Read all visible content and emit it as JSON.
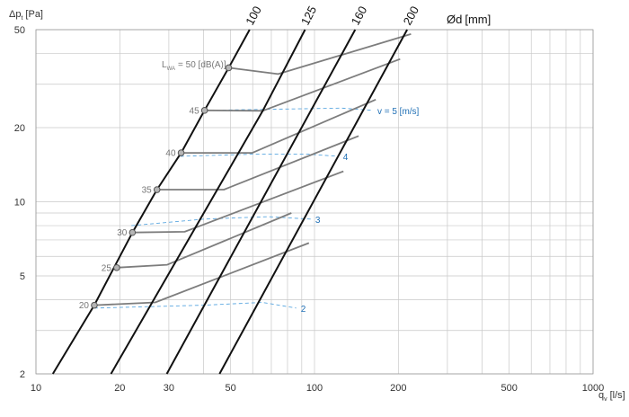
{
  "chart_data": {
    "type": "line",
    "title": "",
    "xlabel": "q",
    "xlabel_sub": "v",
    "xlabel_unit": "[l/s]",
    "ylabel": "Δp",
    "ylabel_sub": "t",
    "ylabel_unit": "[Pa]",
    "x_scale": "log",
    "y_scale": "log",
    "xlim": [
      10,
      1000
    ],
    "ylim": [
      2,
      50
    ],
    "x_ticks": [
      10,
      20,
      30,
      50,
      100,
      200,
      500,
      1000
    ],
    "y_ticks": [
      2,
      5,
      10,
      20,
      50
    ],
    "grid": true,
    "diameter_title": "Ød",
    "diameter_unit": "[mm]",
    "series": [
      {
        "name": "100",
        "points": [
          [
            11.5,
            2
          ],
          [
            16.2,
            3.8
          ],
          [
            22.2,
            7.5
          ],
          [
            27.2,
            11.2
          ],
          [
            33.2,
            15.8
          ],
          [
            40.3,
            23.5
          ],
          [
            49.2,
            35
          ],
          [
            58.5,
            50
          ]
        ]
      },
      {
        "name": "125",
        "points": [
          [
            18.6,
            2
          ],
          [
            65.2,
            23.4
          ],
          [
            92.5,
            50
          ]
        ]
      },
      {
        "name": "160",
        "points": [
          [
            29.5,
            2
          ],
          [
            140,
            50
          ]
        ]
      },
      {
        "name": "200",
        "points": [
          [
            45.6,
            2
          ],
          [
            215,
            50
          ]
        ]
      }
    ],
    "sound_level": {
      "label": "L",
      "label_sub": "WA",
      "label_unit": "= 50 [dB(A)]",
      "lines": [
        {
          "value": "20",
          "points": [
            [
              16.2,
              3.8
            ],
            [
              26.8,
              3.9
            ],
            [
              95.5,
              6.8
            ]
          ]
        },
        {
          "value": "25",
          "points": [
            [
              19.5,
              5.4
            ],
            [
              29.6,
              5.55
            ],
            [
              82.6,
              9
            ]
          ]
        },
        {
          "value": "30",
          "points": [
            [
              22.2,
              7.5
            ],
            [
              34.2,
              7.55
            ],
            [
              127,
              13.3
            ]
          ]
        },
        {
          "value": "35",
          "points": [
            [
              27.2,
              11.2
            ],
            [
              47.3,
              11.2
            ],
            [
              144,
              18.5
            ]
          ]
        },
        {
          "value": "40",
          "points": [
            [
              33.2,
              15.8
            ],
            [
              59.8,
              15.8
            ],
            [
              166,
              26
            ]
          ]
        },
        {
          "value": "45",
          "points": [
            [
              40.3,
              23.5
            ],
            [
              65.2,
              23.4
            ],
            [
              203,
              38
            ]
          ]
        },
        {
          "value": "50",
          "points": [
            [
              49.2,
              35
            ],
            [
              74,
              33
            ],
            [
              222,
              48
            ]
          ]
        }
      ]
    },
    "velocity": {
      "unit": "[m/s]",
      "lines": [
        {
          "value": "2",
          "label": "2",
          "points": [
            [
              16.2,
              3.7
            ],
            [
              40,
              3.8
            ],
            [
              65,
              3.9
            ],
            [
              86,
              3.7
            ]
          ]
        },
        {
          "value": "3",
          "label": "3",
          "points": [
            [
              22,
              8
            ],
            [
              40,
              8.5
            ],
            [
              68,
              8.7
            ],
            [
              97,
              8.5
            ]
          ]
        },
        {
          "value": "4",
          "label": "4",
          "points": [
            [
              33,
              15.3
            ],
            [
              60,
              15.6
            ],
            [
              95,
              15.6
            ],
            [
              122,
              15.3
            ]
          ]
        },
        {
          "value": "5",
          "label": "v = 5 [m/s]",
          "points": [
            [
              40,
              23.5
            ],
            [
              80,
              23.8
            ],
            [
              125,
              24
            ],
            [
              162,
              23.5
            ]
          ]
        }
      ]
    },
    "colors": {
      "grid": "#c8c8c8",
      "diameter_line": "#111111",
      "sound_line": "#7d7d7d",
      "velocity_line": "#5aa7e0",
      "velocity_label": "#1f6fb5",
      "marker_fill": "#b5b5b5"
    }
  }
}
